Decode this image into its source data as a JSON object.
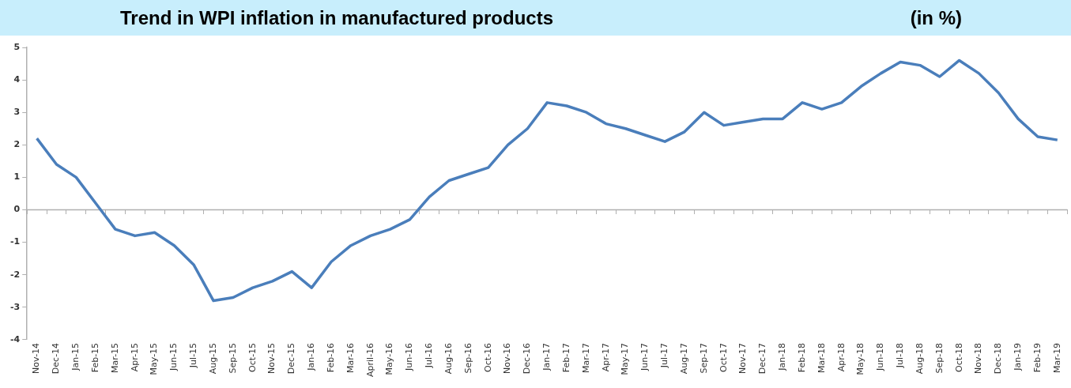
{
  "chart_data": {
    "type": "line",
    "title": "Trend in WPI inflation in manufactured products",
    "subtitle": "(in %)",
    "categories": [
      "Nov-14",
      "Dec-14",
      "Jan-15",
      "Feb-15",
      "Mar-15",
      "Apr-15",
      "May-15",
      "Jun-15",
      "Jul-15",
      "Aug-15",
      "Sep-15",
      "Oct-15",
      "Nov-15",
      "Dec-15",
      "Jan-16",
      "Feb-16",
      "Mar-16",
      "April-16",
      "May-16",
      "Jun-16",
      "Jul-16",
      "Aug-16",
      "Sep-16",
      "Oct-16",
      "Nov-16",
      "Dec-16",
      "Jan-17",
      "Feb-17",
      "Mar-17",
      "Apr-17",
      "May-17",
      "Jun-17",
      "Jul-17",
      "Aug-17",
      "Sep-17",
      "Oct-17",
      "Nov-17",
      "Dec-17",
      "Jan-18",
      "Feb-18",
      "Mar-18",
      "Apr-18",
      "May-18",
      "Jun-18",
      "Jul-18",
      "Aug-18",
      "Sep-18",
      "Oct-18",
      "Nov-18",
      "Dec-18",
      "Jan-19",
      "Feb-19",
      "Mar-19"
    ],
    "series": [
      {
        "color": "#4a7ebb",
        "values": [
          2.2,
          1.4,
          1.0,
          0.2,
          -0.6,
          -0.8,
          -0.7,
          -1.1,
          -1.7,
          -2.8,
          -2.7,
          -2.4,
          -2.2,
          -1.9,
          -2.4,
          -1.6,
          -1.1,
          -0.8,
          -0.6,
          -0.3,
          0.4,
          0.9,
          1.1,
          1.3,
          2.0,
          2.5,
          3.3,
          3.2,
          3.0,
          2.65,
          2.5,
          2.3,
          2.1,
          2.4,
          3.0,
          2.6,
          2.7,
          2.8,
          2.8,
          3.3,
          3.1,
          3.3,
          3.8,
          4.2,
          4.55,
          4.45,
          4.1,
          4.6,
          4.2,
          3.6,
          2.8,
          2.25,
          2.15
        ]
      }
    ],
    "ylim": [
      -4,
      5
    ],
    "yticks": [
      -4,
      -3,
      -2,
      -1,
      0,
      1,
      2,
      3,
      4,
      5
    ],
    "ref_lines": [
      {
        "axis": "y",
        "value": 0,
        "color": "#b0b0b0"
      }
    ],
    "grid": false,
    "legend": false,
    "marker": "none",
    "line_style": "solid"
  }
}
